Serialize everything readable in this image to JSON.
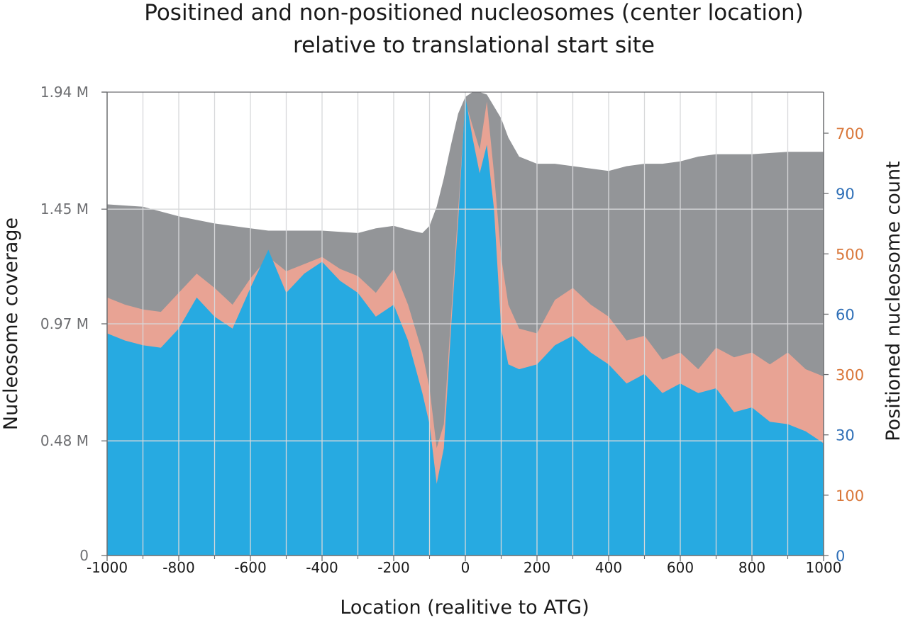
{
  "chart_data": {
    "type": "area",
    "title_lines": [
      "Positined and non-positioned nucleosomes (center location)",
      "relative to translational start site"
    ],
    "xlabel": "Location (realitive to ATG)",
    "ylabel_left": "Nucleosome coverage",
    "ylabel_right": "Positioned nucleosome count",
    "x_ticks": [
      "-1000",
      "-800",
      "-600",
      "-400",
      "-200",
      "0",
      "200",
      "400",
      "600",
      "800",
      "1000"
    ],
    "y_left_ticks": [
      {
        "label": "0",
        "value": 0
      },
      {
        "label": "0.48 M",
        "value": 0.48
      },
      {
        "label": "0.97 M",
        "value": 0.97
      },
      {
        "label": "1.45 M",
        "value": 1.45
      },
      {
        "label": "1.94 M",
        "value": 1.94
      }
    ],
    "y_right_ticks": [
      {
        "label": "0",
        "color": "#2e6fb7"
      },
      {
        "label": "100",
        "color": "#d9773a"
      },
      {
        "label": "30",
        "color": "#2e6fb7"
      },
      {
        "label": "300",
        "color": "#d9773a"
      },
      {
        "label": "60",
        "color": "#2e6fb7"
      },
      {
        "label": "500",
        "color": "#d9773a"
      },
      {
        "label": "90",
        "color": "#2e6fb7"
      },
      {
        "label": "700",
        "color": "#d9773a"
      }
    ],
    "xlim": [
      -1000,
      1000
    ],
    "ylim_left": [
      0,
      1.94
    ],
    "grid": true,
    "colors": {
      "total_coverage": "#939598",
      "positioned_orange": "#e8a394",
      "positioned_blue": "#27aae1",
      "right_axis_blue": "#2e6fb7",
      "right_axis_orange": "#d9773a"
    },
    "series": [
      {
        "x": [
          -1000,
          -900,
          -800,
          -700,
          -600,
          -550,
          -500,
          -400,
          -300,
          -250,
          -200,
          -150,
          -120,
          -100,
          -80,
          -60,
          -40,
          -20,
          0,
          20,
          40,
          60,
          80,
          100,
          120,
          150,
          200,
          250,
          300,
          350,
          400,
          450,
          500,
          550,
          600,
          650,
          700,
          800,
          900,
          1000
        ],
        "values": [
          1.47,
          1.46,
          1.42,
          1.39,
          1.37,
          1.36,
          1.36,
          1.36,
          1.35,
          1.37,
          1.38,
          1.36,
          1.35,
          1.38,
          1.46,
          1.58,
          1.72,
          1.85,
          1.92,
          1.94,
          1.94,
          1.93,
          1.88,
          1.83,
          1.75,
          1.67,
          1.64,
          1.64,
          1.63,
          1.62,
          1.61,
          1.63,
          1.64,
          1.64,
          1.65,
          1.67,
          1.68,
          1.68,
          1.69,
          1.69
        ]
      },
      {
        "x": [
          -1000,
          -950,
          -900,
          -850,
          -800,
          -750,
          -700,
          -650,
          -600,
          -550,
          -500,
          -450,
          -400,
          -350,
          -300,
          -250,
          -200,
          -160,
          -120,
          -100,
          -80,
          -60,
          -40,
          -20,
          0,
          20,
          40,
          60,
          80,
          100,
          120,
          150,
          200,
          250,
          300,
          350,
          400,
          450,
          500,
          550,
          600,
          650,
          700,
          750,
          800,
          850,
          900,
          950,
          1000
        ],
        "values": [
          1.08,
          1.05,
          1.03,
          1.02,
          1.1,
          1.18,
          1.12,
          1.05,
          1.16,
          1.25,
          1.19,
          1.22,
          1.25,
          1.2,
          1.17,
          1.1,
          1.2,
          1.05,
          0.85,
          0.7,
          0.45,
          0.55,
          1.0,
          1.45,
          1.9,
          1.8,
          1.7,
          1.9,
          1.6,
          1.25,
          1.05,
          0.95,
          0.93,
          1.07,
          1.12,
          1.05,
          1.0,
          0.9,
          0.92,
          0.82,
          0.85,
          0.78,
          0.87,
          0.83,
          0.85,
          0.8,
          0.85,
          0.78,
          0.75
        ]
      },
      {
        "x": [
          -1000,
          -950,
          -900,
          -850,
          -800,
          -750,
          -700,
          -650,
          -600,
          -550,
          -500,
          -450,
          -400,
          -350,
          -300,
          -250,
          -200,
          -160,
          -120,
          -100,
          -80,
          -60,
          -40,
          -20,
          0,
          20,
          40,
          60,
          80,
          100,
          120,
          150,
          200,
          250,
          300,
          350,
          400,
          450,
          500,
          550,
          600,
          650,
          700,
          750,
          800,
          850,
          900,
          950,
          1000
        ],
        "values": [
          0.93,
          0.9,
          0.88,
          0.87,
          0.95,
          1.08,
          1.0,
          0.95,
          1.12,
          1.28,
          1.1,
          1.18,
          1.23,
          1.15,
          1.1,
          1.0,
          1.05,
          0.9,
          0.68,
          0.55,
          0.3,
          0.45,
          0.95,
          1.4,
          1.92,
          1.75,
          1.6,
          1.72,
          1.45,
          0.95,
          0.8,
          0.78,
          0.8,
          0.88,
          0.92,
          0.85,
          0.8,
          0.72,
          0.76,
          0.68,
          0.72,
          0.68,
          0.7,
          0.6,
          0.62,
          0.56,
          0.55,
          0.52,
          0.47
        ]
      }
    ]
  }
}
